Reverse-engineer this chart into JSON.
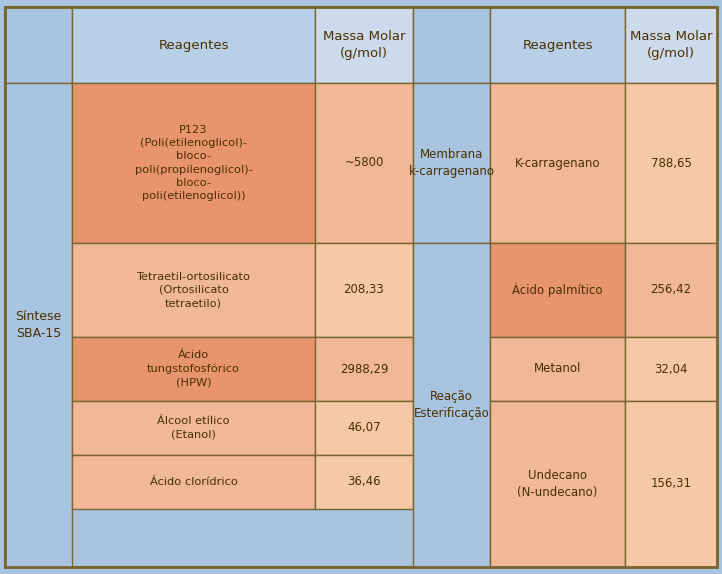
{
  "bg_color": "#a8c4e0",
  "text_color": "#4a3000",
  "border_color": "#7a6530",
  "figsize": [
    7.22,
    5.74
  ],
  "left_col_label": "Síntese\nSBA-15",
  "header_reagentes": "Reagentes",
  "header_massa": "Massa Molar\n(g/mol)",
  "section_membrana": "Membrana\nk-carragenano",
  "section_reacao": "Reação\nEsterificação",
  "col_header_bg": "#b8cfe8",
  "col_header_massa_bg": "#ccdaec",
  "cell_orange": "#e8956d",
  "cell_peach": "#f0b896",
  "cell_light_peach": "#f5c8a8",
  "left_rows": [
    {
      "reagent": "P123\n(Poli(etilenoglicol)-\nbloco-\npoli(propilenoglicol)-\nbloco-\npoli(etilenoglicol))",
      "massa": "~5800",
      "reagent_color": "#e8956d",
      "massa_color": "#f0b896"
    },
    {
      "reagent": "Tetraetil-ortosilicato\n(Ortosilicato\ntetraetilo)",
      "massa": "208,33",
      "reagent_color": "#f0b896",
      "massa_color": "#f5c8a8"
    },
    {
      "reagent": "Ácido\ntungstofosfórico\n(HPW)",
      "massa": "2988,29",
      "reagent_color": "#e8956d",
      "massa_color": "#f0b896"
    },
    {
      "reagent": "Álcool etílico\n(Etanol)",
      "massa": "46,07",
      "reagent_color": "#f0b896",
      "massa_color": "#f5c8a8"
    },
    {
      "reagent": "Ácido clorídrico",
      "massa": "36,46",
      "reagent_color": "#f0b896",
      "massa_color": "#f5c8a8"
    }
  ],
  "right_rows": [
    {
      "reagent": "K-carragenano",
      "massa": "788,65",
      "reagent_color": "#f0b896",
      "massa_color": "#f5c8a8"
    },
    {
      "reagent": "Ácido palmítico",
      "massa": "256,42",
      "reagent_color": "#e8956d",
      "massa_color": "#f0b896"
    },
    {
      "reagent": "Metanol",
      "massa": "32,04",
      "reagent_color": "#f0b896",
      "massa_color": "#f5c8a8"
    },
    {
      "reagent": "Undecano\n(N-undecano)",
      "massa": "156,31",
      "reagent_color": "#f0b896",
      "massa_color": "#f5c8a8"
    }
  ]
}
